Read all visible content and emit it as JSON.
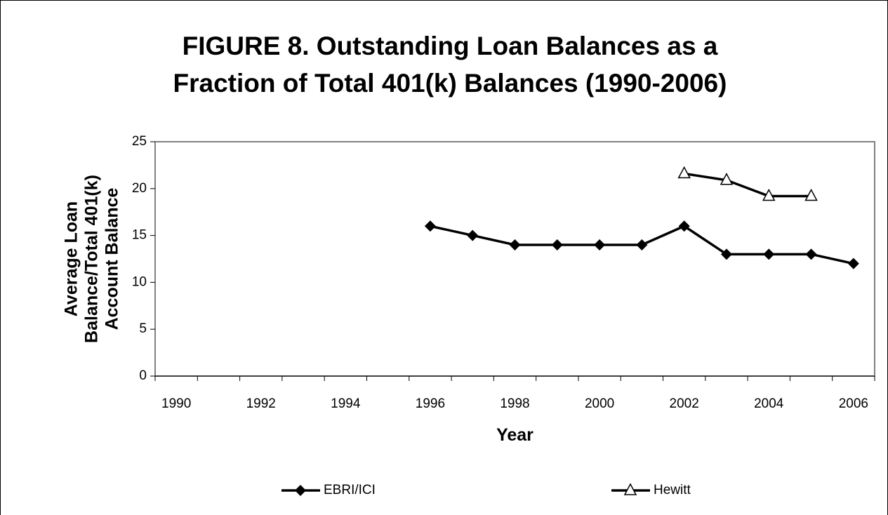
{
  "chart_data": {
    "type": "line",
    "title": "FIGURE 8. Outstanding Loan Balances as a Fraction of Total 401(k) Balances (1990-2006)",
    "x_label": "Year",
    "y_label": "Average Loan Balance/Total 401(k) Account Balance",
    "categories": [
      "1990",
      null,
      "1992",
      null,
      "1994",
      null,
      "1996",
      null,
      "1998",
      null,
      "2000",
      null,
      "2002",
      null,
      "2004",
      null,
      "2006"
    ],
    "series": [
      {
        "name": "EBRI/ICI",
        "color": "#000000",
        "marker": "diamond",
        "values": [
          null,
          null,
          null,
          null,
          null,
          null,
          16,
          15,
          14,
          14,
          14,
          14,
          16,
          13,
          13,
          13,
          12
        ]
      },
      {
        "name": "Hewitt",
        "color": "#000000",
        "marker": "triangle",
        "values": [
          null,
          null,
          null,
          null,
          null,
          null,
          null,
          null,
          null,
          null,
          null,
          null,
          21.6,
          20.9,
          19.2,
          19.2,
          null
        ]
      }
    ],
    "ylim": [
      0,
      25
    ],
    "yticks": [
      0,
      5,
      10,
      15,
      20,
      25
    ],
    "grid": false,
    "legend": "bottom"
  }
}
